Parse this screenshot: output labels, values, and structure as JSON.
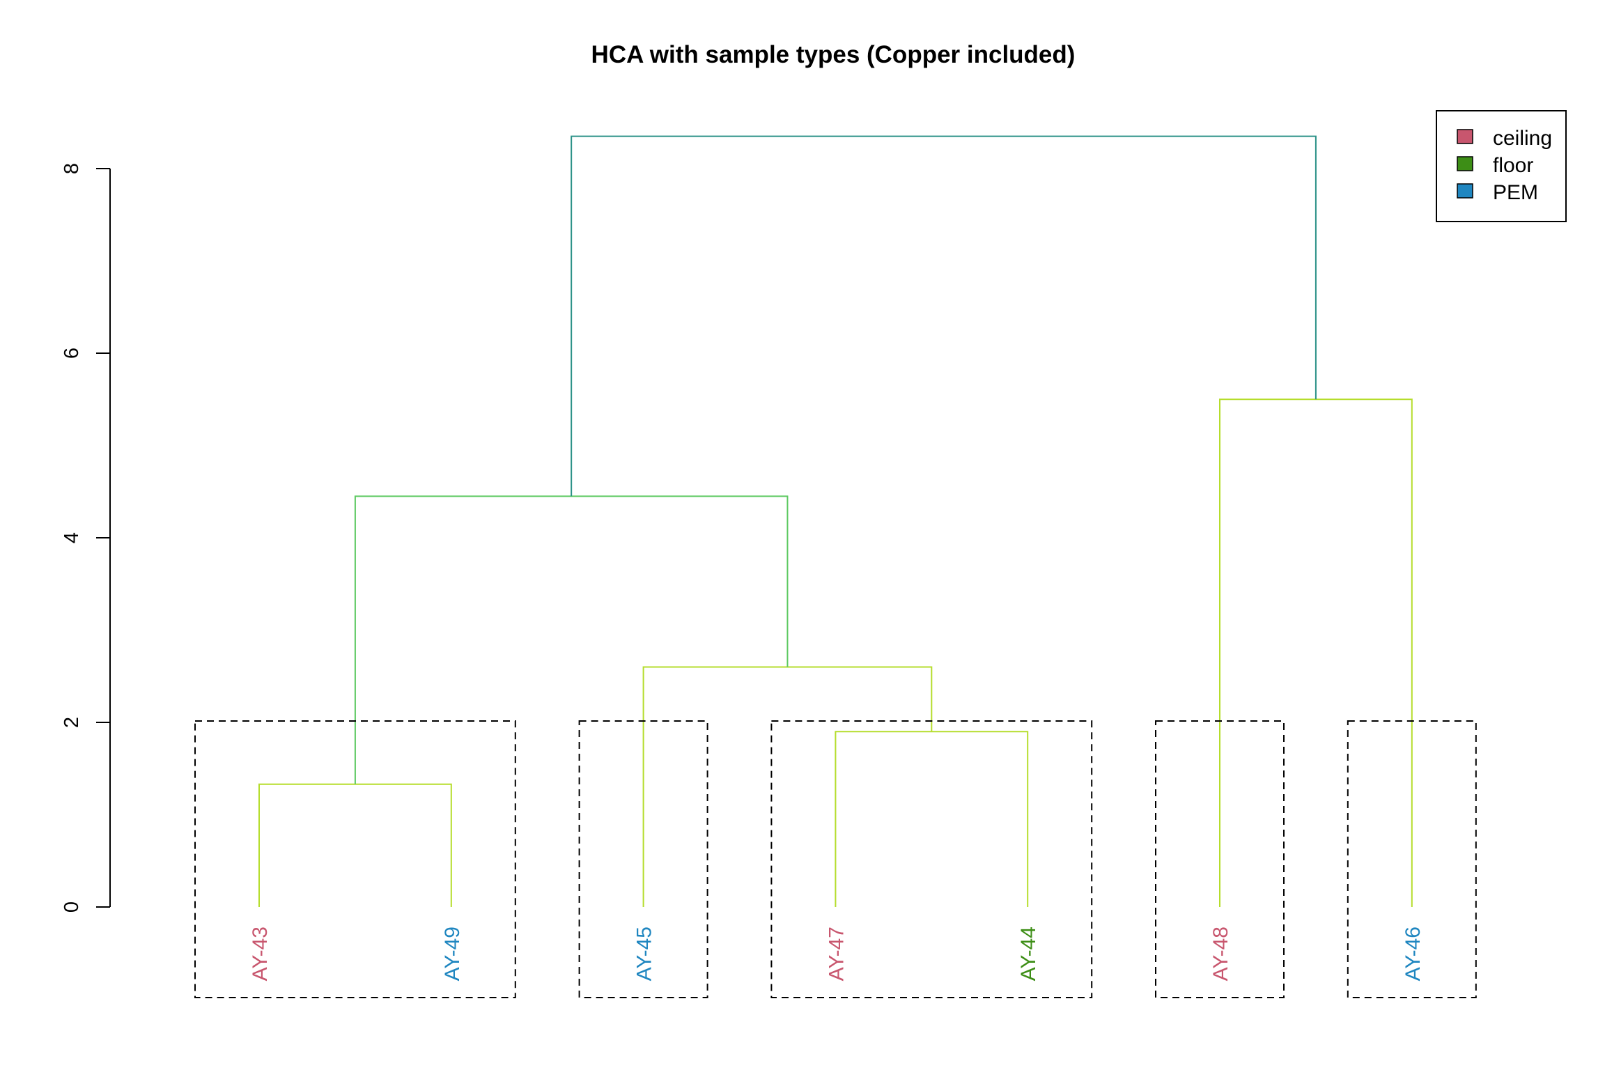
{
  "chart_data": {
    "type": "dendrogram",
    "title": "HCA with sample types (Copper included)",
    "xlabel": "",
    "ylabel": "",
    "ylim": [
      0,
      8
    ],
    "y_ticks": [
      "0",
      "2",
      "4",
      "6",
      "8"
    ],
    "leaves": [
      {
        "label": "AY-43",
        "type": "ceiling"
      },
      {
        "label": "AY-49",
        "type": "PEM"
      },
      {
        "label": "AY-45",
        "type": "PEM"
      },
      {
        "label": "AY-47",
        "type": "ceiling"
      },
      {
        "label": "AY-44",
        "type": "floor"
      },
      {
        "label": "AY-48",
        "type": "ceiling"
      },
      {
        "label": "AY-46",
        "type": "PEM"
      }
    ],
    "merges": [
      {
        "left": [
          "AY-43"
        ],
        "right": [
          "AY-49"
        ],
        "height": 1.33,
        "color": "#b5dd2c"
      },
      {
        "left": [
          "AY-47"
        ],
        "right": [
          "AY-44"
        ],
        "height": 1.9,
        "color": "#b5dd2c"
      },
      {
        "left": [
          "AY-45"
        ],
        "right": [
          "AY-47",
          "AY-44"
        ],
        "height": 2.6,
        "color": "#b5dd2c"
      },
      {
        "left": [
          "AY-43",
          "AY-49"
        ],
        "right": [
          "AY-45",
          "AY-47",
          "AY-44"
        ],
        "height": 4.45,
        "color": "#5ec962"
      },
      {
        "left": [
          "AY-48"
        ],
        "right": [
          "AY-46"
        ],
        "height": 5.5,
        "color": "#b5dd2c"
      },
      {
        "left": [
          "AY-43",
          "AY-49",
          "AY-45",
          "AY-47",
          "AY-44"
        ],
        "right": [
          "AY-48",
          "AY-46"
        ],
        "height": 8.35,
        "color": "#2a9187"
      }
    ],
    "clusters": [
      [
        "AY-43",
        "AY-49"
      ],
      [
        "AY-45"
      ],
      [
        "AY-47",
        "AY-44"
      ],
      [
        "AY-48"
      ],
      [
        "AY-46"
      ]
    ],
    "cut_height": 2,
    "legend": {
      "position": "top-right",
      "entries": [
        {
          "label": "ceiling",
          "color": "#c8566e"
        },
        {
          "label": "floor",
          "color": "#3d8e16"
        },
        {
          "label": "PEM",
          "color": "#1f86c0"
        }
      ]
    }
  }
}
